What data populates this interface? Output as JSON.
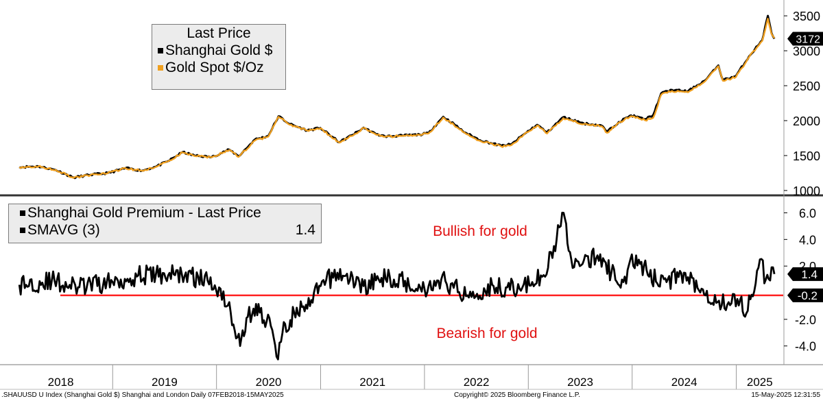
{
  "chart_data": [
    {
      "type": "line",
      "legend_title": "Last Price",
      "series": [
        {
          "name": "Shanghai Gold $",
          "color": "#000000",
          "x": [
            "2018-02-07",
            "2018-04-15",
            "2018-06-15",
            "2018-08-16",
            "2018-10-15",
            "2018-12-15",
            "2019-02-15",
            "2019-04-15",
            "2019-06-01",
            "2019-07-15",
            "2019-09-04",
            "2019-10-15",
            "2019-12-15",
            "2020-02-15",
            "2020-03-19",
            "2020-05-15",
            "2020-07-01",
            "2020-08-06",
            "2020-09-15",
            "2020-11-15",
            "2020-12-31",
            "2021-03-08",
            "2021-05-15",
            "2021-06-01",
            "2021-07-15",
            "2021-08-15",
            "2021-10-15",
            "2021-12-15",
            "2022-01-15",
            "2022-03-08",
            "2022-04-15",
            "2022-05-15",
            "2022-07-15",
            "2022-09-28",
            "2022-11-03",
            "2022-12-15",
            "2023-02-01",
            "2023-03-08",
            "2023-05-04",
            "2023-07-15",
            "2023-09-15",
            "2023-10-05",
            "2023-11-15",
            "2023-12-28",
            "2024-02-15",
            "2024-03-15",
            "2024-04-12",
            "2024-05-20",
            "2024-07-15",
            "2024-09-15",
            "2024-10-30",
            "2024-11-15",
            "2024-12-31",
            "2025-02-15",
            "2025-04-02",
            "2025-04-22",
            "2025-05-05",
            "2025-05-15"
          ],
          "y": [
            1336,
            1345,
            1294,
            1185,
            1225,
            1250,
            1320,
            1285,
            1340,
            1420,
            1550,
            1500,
            1478,
            1585,
            1490,
            1730,
            1780,
            2063,
            1950,
            1860,
            1895,
            1690,
            1850,
            1900,
            1805,
            1775,
            1785,
            1800,
            1820,
            2055,
            1950,
            1850,
            1720,
            1640,
            1660,
            1800,
            1940,
            1830,
            2050,
            1960,
            1930,
            1840,
            1980,
            2075,
            2020,
            2080,
            2390,
            2440,
            2420,
            2580,
            2790,
            2580,
            2640,
            2920,
            3150,
            3500,
            3250,
            3172
          ]
        },
        {
          "name": "Gold Spot $/Oz",
          "color": "#f0a020",
          "x": [
            "2018-02-07",
            "2018-04-15",
            "2018-06-15",
            "2018-08-16",
            "2018-10-15",
            "2018-12-15",
            "2019-02-15",
            "2019-04-15",
            "2019-06-01",
            "2019-07-15",
            "2019-09-04",
            "2019-10-15",
            "2019-12-15",
            "2020-02-15",
            "2020-03-19",
            "2020-05-15",
            "2020-07-01",
            "2020-08-06",
            "2020-09-15",
            "2020-11-15",
            "2020-12-31",
            "2021-03-08",
            "2021-05-15",
            "2021-06-01",
            "2021-07-15",
            "2021-08-15",
            "2021-10-15",
            "2021-12-15",
            "2022-01-15",
            "2022-03-08",
            "2022-04-15",
            "2022-05-15",
            "2022-07-15",
            "2022-09-28",
            "2022-11-03",
            "2022-12-15",
            "2023-02-01",
            "2023-03-08",
            "2023-05-04",
            "2023-07-15",
            "2023-09-15",
            "2023-10-05",
            "2023-11-15",
            "2023-12-28",
            "2024-02-15",
            "2024-03-15",
            "2024-04-12",
            "2024-05-20",
            "2024-07-15",
            "2024-09-15",
            "2024-10-30",
            "2024-11-15",
            "2024-12-31",
            "2025-02-15",
            "2025-04-02",
            "2025-04-22",
            "2025-05-05",
            "2025-05-15"
          ],
          "y": [
            1334,
            1343,
            1296,
            1180,
            1222,
            1248,
            1318,
            1282,
            1337,
            1415,
            1545,
            1495,
            1475,
            1580,
            1480,
            1715,
            1770,
            2055,
            1940,
            1860,
            1890,
            1685,
            1840,
            1895,
            1800,
            1770,
            1780,
            1795,
            1815,
            2045,
            1935,
            1840,
            1710,
            1630,
            1650,
            1795,
            1930,
            1815,
            2035,
            1950,
            1920,
            1825,
            1970,
            2065,
            2005,
            2040,
            2370,
            2425,
            2405,
            2570,
            2780,
            2570,
            2625,
            2910,
            3140,
            3460,
            3240,
            3180
          ]
        }
      ],
      "ylim": [
        950,
        3550
      ],
      "yticks": [
        1000,
        1500,
        2000,
        2500,
        3000,
        3500
      ],
      "last_value_label": "3172"
    },
    {
      "type": "line",
      "legend_title": "Shanghai Gold Premium - Last Price",
      "series": [
        {
          "name": "SMAVG (3)",
          "color": "#000000",
          "last_value": "1.4",
          "x": [
            "2018-02-07",
            "2018-06-01",
            "2018-09-01",
            "2019-01-01",
            "2019-04-01",
            "2019-09-01",
            "2019-12-01",
            "2020-01-15",
            "2020-02-20",
            "2020-03-24",
            "2020-04-20",
            "2020-05-10",
            "2020-06-01",
            "2020-07-10",
            "2020-07-30",
            "2020-08-20",
            "2020-09-30",
            "2020-11-15",
            "2021-01-01",
            "2021-03-01",
            "2021-06-01",
            "2021-09-01",
            "2022-01-01",
            "2022-03-01",
            "2022-06-01",
            "2022-09-01",
            "2022-12-01",
            "2023-01-15",
            "2023-03-01",
            "2023-04-01",
            "2023-04-25",
            "2023-05-05",
            "2023-06-01",
            "2023-07-01",
            "2023-09-01",
            "2023-10-20",
            "2023-12-01",
            "2024-01-15",
            "2024-03-01",
            "2024-05-01",
            "2024-07-01",
            "2024-09-01",
            "2024-11-01",
            "2024-12-15",
            "2025-01-15",
            "2025-02-01",
            "2025-02-15",
            "2025-03-05",
            "2025-03-25",
            "2025-04-15",
            "2025-05-15"
          ],
          "y": [
            0.6,
            0.9,
            0.4,
            0.8,
            1.3,
            1.4,
            0.9,
            0.3,
            -1.5,
            -4.0,
            -1.8,
            -1.2,
            -1.5,
            -2.5,
            -4.8,
            -3.0,
            -1.5,
            -1.2,
            0.5,
            1.5,
            0.5,
            1.2,
            0.3,
            1.0,
            -0.2,
            0.5,
            0.3,
            0.8,
            1.2,
            3.5,
            5.0,
            6.0,
            2.5,
            2.0,
            2.8,
            1.5,
            0.8,
            2.8,
            1.2,
            0.8,
            1.5,
            0.3,
            -0.6,
            -0.8,
            -0.5,
            -1.8,
            -0.2,
            0.1,
            2.5,
            1.0,
            1.4
          ]
        }
      ],
      "ylim": [
        -5.2,
        6.9
      ],
      "yticks": [
        -4.0,
        -2.0,
        2.0,
        4.0,
        6.0
      ],
      "ytick_labels": [
        "-4.0",
        "-2.0",
        "2.0",
        "4.0",
        "6.0"
      ],
      "reference_line": {
        "value": -0.2,
        "label": "-0.2",
        "color": "#ff2020"
      },
      "annotations": [
        {
          "text": "Bullish for gold",
          "color": "#e01010"
        },
        {
          "text": "Bearish for gold",
          "color": "#e01010"
        }
      ]
    }
  ],
  "x_axis": {
    "range": [
      "2017-12-01",
      "2025-06-15"
    ],
    "year_labels": [
      "2018",
      "2019",
      "2020",
      "2021",
      "2022",
      "2023",
      "2024",
      "2025"
    ]
  },
  "footer": {
    "left": ".SHAUUSD U Index (Shanghai Gold $) Shanghai and London  Daily 07FEB2018-15MAY2025",
    "center": "Copyright© 2025 Bloomberg Finance L.P.",
    "right": "15-May-2025 12:31:55"
  }
}
